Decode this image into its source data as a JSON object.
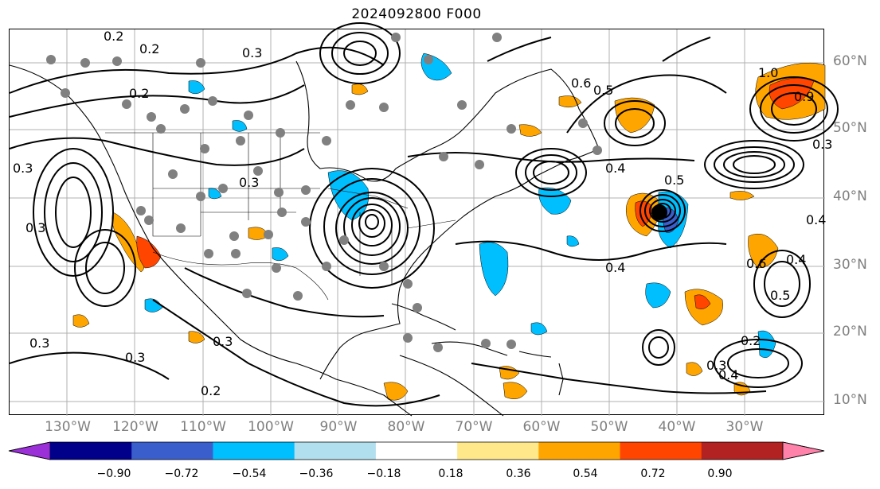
{
  "title": "2024092800 F000",
  "map": {
    "lat_labels": [
      "60°N",
      "50°N",
      "40°N",
      "30°N",
      "20°N",
      "10°N"
    ],
    "lon_labels": [
      "130°W",
      "120°W",
      "110°W",
      "100°W",
      "90°W",
      "80°W",
      "70°W",
      "60°W",
      "50°W",
      "40°W",
      "30°W"
    ],
    "contour_labels": [
      "0.2",
      "0.2",
      "0.3",
      "0.2",
      "0.3",
      "0.4",
      "0.5",
      "0.6",
      "0.5",
      "1.0",
      "0.9",
      "0.3",
      "0.3",
      "0.3",
      "0.4",
      "0.5",
      "0.4",
      "0.6",
      "0.4",
      "0.3",
      "0.2",
      "0.3",
      "0.2",
      "0.3",
      "0.4",
      "0.3"
    ]
  },
  "colorbar": {
    "tick_labels": [
      "−0.90",
      "−0.72",
      "−0.54",
      "−0.36",
      "−0.18",
      "0.18",
      "0.36",
      "0.54",
      "0.72",
      "0.90"
    ],
    "colors": [
      "#9b30d9",
      "#00008b",
      "#3a5fcd",
      "#00bfff",
      "#b2dfee",
      "#ffffff",
      "#ffe88a",
      "#ffa500",
      "#ff4500",
      "#b22222",
      "#ff82ab"
    ]
  }
}
